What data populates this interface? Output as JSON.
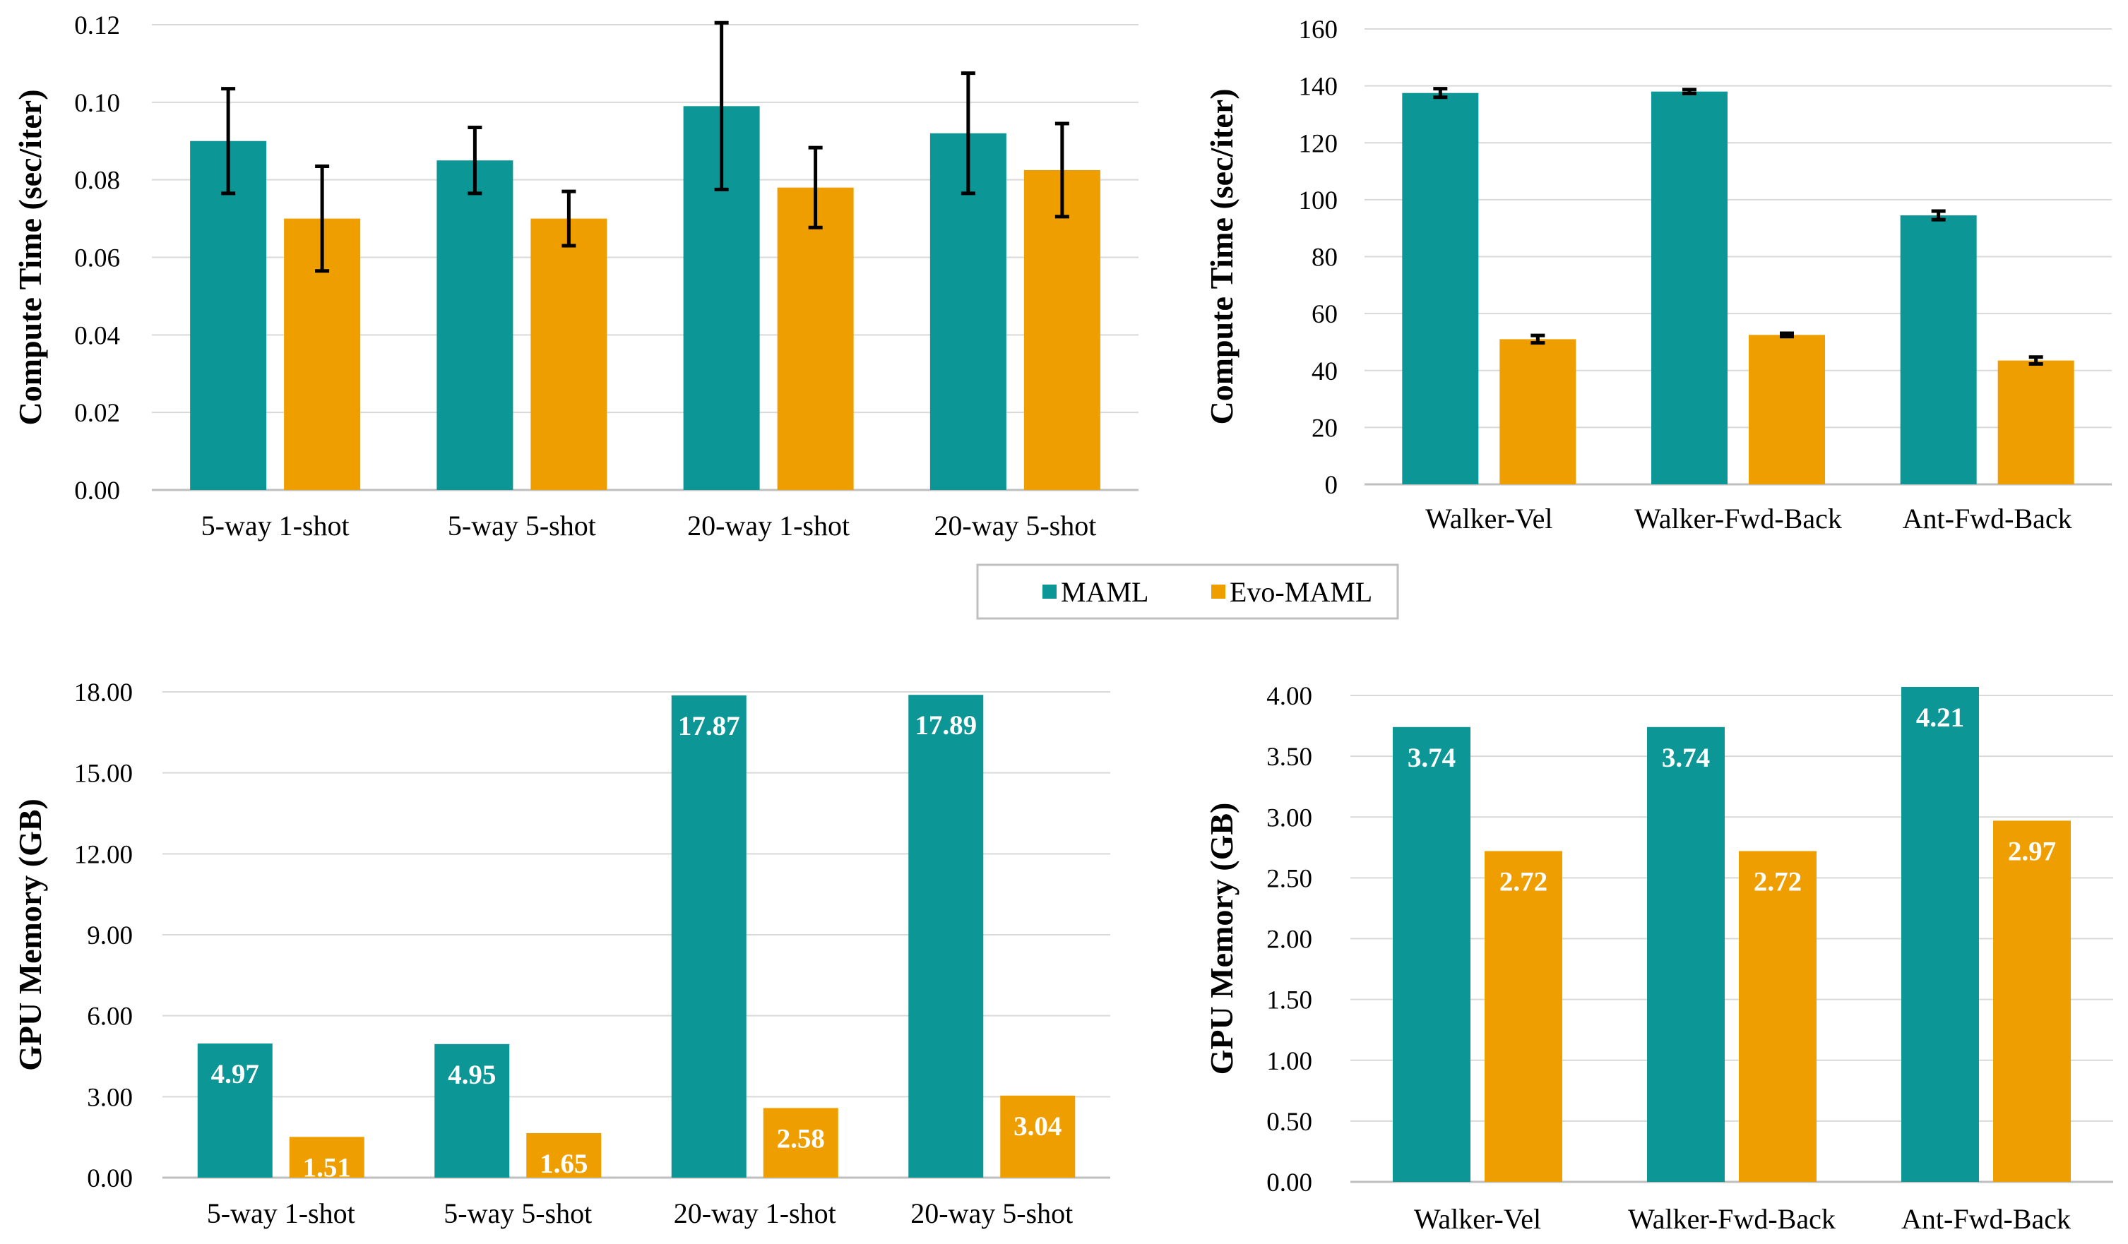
{
  "colors": {
    "maml": "#0c9696",
    "evo": "#ef9e00",
    "grid": "#d9d9d9",
    "legend_border": "#bfbfbf"
  },
  "legend": {
    "items": [
      {
        "name": "MAML",
        "color": "#0c9696"
      },
      {
        "name": "Evo-MAML",
        "color": "#ef9e00"
      }
    ]
  },
  "chart_data": [
    {
      "id": "compute-classification",
      "type": "bar",
      "ylabel": "Compute Time (sec/iter)",
      "ylim": [
        0,
        0.12
      ],
      "yticks": [
        0,
        0.02,
        0.04,
        0.06,
        0.08,
        0.1,
        0.12
      ],
      "ytick_labels": [
        "0.00",
        "0.02",
        "0.04",
        "0.06",
        "0.08",
        "0.10",
        "0.12"
      ],
      "categories": [
        "5-way 1-shot",
        "5-way 5-shot",
        "20-way 1-shot",
        "20-way 5-shot"
      ],
      "series": [
        {
          "name": "MAML",
          "values": [
            0.09,
            0.085,
            0.099,
            0.092
          ],
          "error": [
            0.0135,
            0.0085,
            0.0215,
            0.0155
          ]
        },
        {
          "name": "Evo-MAML",
          "values": [
            0.07,
            0.07,
            0.078,
            0.0825
          ],
          "error": [
            0.0135,
            0.007,
            0.0103,
            0.012
          ]
        }
      ]
    },
    {
      "id": "compute-rl",
      "type": "bar",
      "ylabel": "Compute Time (sec/iter)",
      "ylim": [
        0,
        160
      ],
      "yticks": [
        0,
        20,
        40,
        60,
        80,
        100,
        120,
        140,
        160
      ],
      "ytick_labels": [
        "0",
        "20",
        "40",
        "60",
        "80",
        "100",
        "120",
        "140",
        "160"
      ],
      "categories": [
        "Walker-Vel",
        "Walker-Fwd-Back",
        "Ant-Fwd-Back"
      ],
      "series": [
        {
          "name": "MAML",
          "values": [
            137.5,
            138,
            94.5
          ],
          "error": [
            1.5,
            0.7,
            1.5
          ]
        },
        {
          "name": "Evo-MAML",
          "values": [
            51,
            52.5,
            43.5
          ],
          "error": [
            1.3,
            0.6,
            1.2
          ]
        }
      ]
    },
    {
      "id": "memory-classification",
      "type": "bar",
      "ylabel": "GPU Memory (GB)",
      "ylim": [
        0,
        18
      ],
      "yticks": [
        0,
        3,
        6,
        9,
        12,
        15,
        18
      ],
      "ytick_labels": [
        "0.00",
        "3.00",
        "6.00",
        "9.00",
        "12.00",
        "15.00",
        "18.00"
      ],
      "categories": [
        "5-way 1-shot",
        "5-way 5-shot",
        "20-way 1-shot",
        "20-way 5-shot"
      ],
      "series": [
        {
          "name": "MAML",
          "values": [
            4.97,
            4.95,
            17.87,
            17.89
          ],
          "labels": [
            "4.97",
            "4.95",
            "17.87",
            "17.89"
          ]
        },
        {
          "name": "Evo-MAML",
          "values": [
            1.51,
            1.65,
            2.58,
            3.04
          ],
          "labels": [
            "1.51",
            "1.65",
            "2.58",
            "3.04"
          ]
        }
      ]
    },
    {
      "id": "memory-rl",
      "type": "bar",
      "ylabel": "GPU Memory (GB)",
      "ylim": [
        0,
        4
      ],
      "yticks": [
        0,
        0.5,
        1,
        1.5,
        2,
        2.5,
        3,
        3.5,
        4
      ],
      "ytick_labels": [
        "0.00",
        "0.50",
        "1.00",
        "1.50",
        "2.00",
        "2.50",
        "3.00",
        "3.50",
        "4.00"
      ],
      "categories": [
        "Walker-Vel",
        "Walker-Fwd-Back",
        "Ant-Fwd-Back"
      ],
      "series": [
        {
          "name": "MAML",
          "values": [
            3.74,
            3.74,
            4.21
          ],
          "labels": [
            "3.74",
            "3.74",
            "4.21"
          ]
        },
        {
          "name": "Evo-MAML",
          "values": [
            2.72,
            2.72,
            2.97
          ],
          "labels": [
            "2.72",
            "2.72",
            "2.97"
          ]
        }
      ]
    }
  ]
}
